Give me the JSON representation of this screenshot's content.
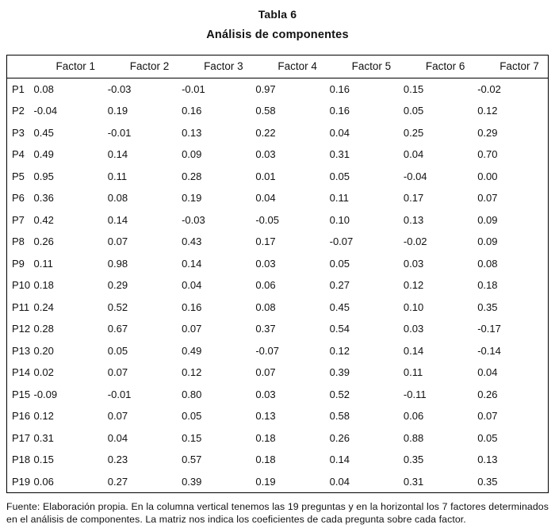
{
  "title": "Tabla 6",
  "subtitle": "Análisis de componentes",
  "table": {
    "columns": [
      "",
      "Factor 1",
      "Factor 2",
      "Factor 3",
      "Factor 4",
      "Factor 5",
      "Factor 6",
      "Factor 7"
    ],
    "rows": [
      {
        "label": "P1",
        "values": [
          "0.08",
          "-0.03",
          "-0.01",
          "0.97",
          "0.16",
          "0.15",
          "-0.02"
        ]
      },
      {
        "label": "P2",
        "values": [
          "-0.04",
          "0.19",
          "0.16",
          "0.58",
          "0.16",
          "0.05",
          "0.12"
        ]
      },
      {
        "label": "P3",
        "values": [
          "0.45",
          "-0.01",
          "0.13",
          "0.22",
          "0.04",
          "0.25",
          "0.29"
        ]
      },
      {
        "label": "P4",
        "values": [
          "0.49",
          "0.14",
          "0.09",
          "0.03",
          "0.31",
          "0.04",
          "0.70"
        ]
      },
      {
        "label": "P5",
        "values": [
          "0.95",
          "0.11",
          "0.28",
          "0.01",
          "0.05",
          "-0.04",
          "0.00"
        ]
      },
      {
        "label": "P6",
        "values": [
          "0.36",
          "0.08",
          "0.19",
          "0.04",
          "0.11",
          "0.17",
          "0.07"
        ]
      },
      {
        "label": "P7",
        "values": [
          "0.42",
          "0.14",
          "-0.03",
          "-0.05",
          "0.10",
          "0.13",
          "0.09"
        ]
      },
      {
        "label": "P8",
        "values": [
          "0.26",
          "0.07",
          "0.43",
          "0.17",
          "-0.07",
          "-0.02",
          "0.09"
        ]
      },
      {
        "label": "P9",
        "values": [
          "0.11",
          "0.98",
          "0.14",
          "0.03",
          "0.05",
          "0.03",
          "0.08"
        ]
      },
      {
        "label": "P10",
        "values": [
          "0.18",
          "0.29",
          "0.04",
          "0.06",
          "0.27",
          "0.12",
          "0.18"
        ]
      },
      {
        "label": "P11",
        "values": [
          "0.24",
          "0.52",
          "0.16",
          "0.08",
          "0.45",
          "0.10",
          "0.35"
        ]
      },
      {
        "label": "P12",
        "values": [
          "0.28",
          "0.67",
          "0.07",
          "0.37",
          "0.54",
          "0.03",
          "-0.17"
        ]
      },
      {
        "label": "P13",
        "values": [
          "0.20",
          "0.05",
          "0.49",
          "-0.07",
          "0.12",
          "0.14",
          "-0.14"
        ]
      },
      {
        "label": "P14",
        "values": [
          "0.02",
          "0.07",
          "0.12",
          "0.07",
          "0.39",
          "0.11",
          "0.04"
        ]
      },
      {
        "label": "P15",
        "values": [
          "-0.09",
          "-0.01",
          "0.80",
          "0.03",
          "0.52",
          "-0.11",
          "0.26"
        ]
      },
      {
        "label": "P16",
        "values": [
          "0.12",
          "0.07",
          "0.05",
          "0.13",
          "0.58",
          "0.06",
          "0.07"
        ]
      },
      {
        "label": "P17",
        "values": [
          "0.31",
          "0.04",
          "0.15",
          "0.18",
          "0.26",
          "0.88",
          "0.05"
        ]
      },
      {
        "label": "P18",
        "values": [
          "0.15",
          "0.23",
          "0.57",
          "0.18",
          "0.14",
          "0.35",
          "0.13"
        ]
      },
      {
        "label": "P19",
        "values": [
          "0.06",
          "0.27",
          "0.39",
          "0.19",
          "0.04",
          "0.31",
          "0.35"
        ]
      }
    ]
  },
  "footnote": "Fuente: Elaboración propia. En la columna vertical tenemos las 19 preguntas y en la horizontal los 7 factores determinados en el análisis de componentes. La matriz nos indica los coeficientes de cada pregunta sobre cada factor."
}
